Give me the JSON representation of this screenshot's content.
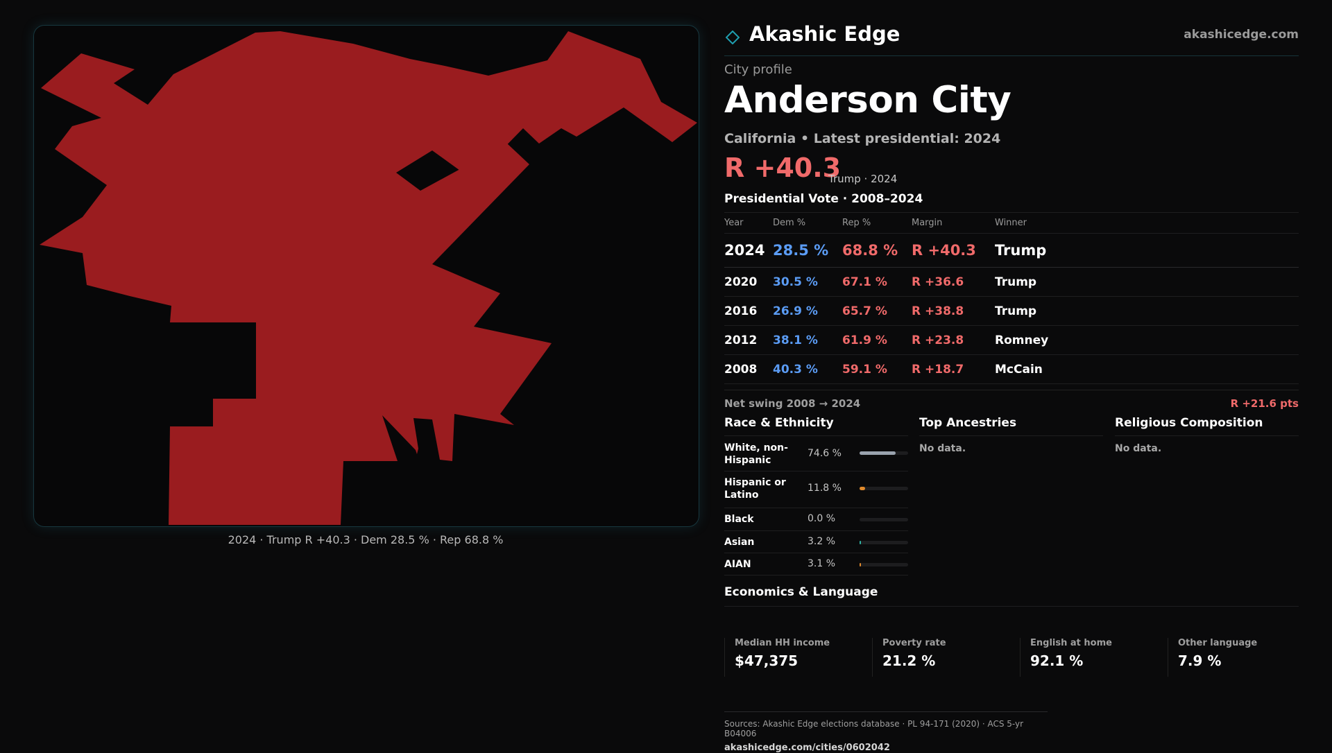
{
  "brand": {
    "name": "Akashic Edge",
    "url": "akashicedge.com"
  },
  "map": {
    "fill_color": "#9a1c1f",
    "caption": "2024 · Trump R +40.3 · Dem 28.5 % · Rep 68.8 %"
  },
  "profile": {
    "eyebrow": "City profile",
    "city": "Anderson City",
    "subline": "California • Latest presidential: 2024",
    "margin": "R +40.3",
    "margin_note": "Trump · 2024"
  },
  "votes": {
    "title": "Presidential Vote · 2008–2024",
    "headers": {
      "year": "Year",
      "dem": "Dem %",
      "rep": "Rep %",
      "margin": "Margin",
      "winner": "Winner"
    },
    "rows": [
      {
        "year": "2024",
        "dem": "28.5 %",
        "rep": "68.8 %",
        "margin": "R +40.3",
        "winner": "Trump"
      },
      {
        "year": "2020",
        "dem": "30.5 %",
        "rep": "67.1 %",
        "margin": "R +36.6",
        "winner": "Trump"
      },
      {
        "year": "2016",
        "dem": "26.9 %",
        "rep": "65.7 %",
        "margin": "R +38.8",
        "winner": "Trump"
      },
      {
        "year": "2012",
        "dem": "38.1 %",
        "rep": "61.9 %",
        "margin": "R +23.8",
        "winner": "Romney"
      },
      {
        "year": "2008",
        "dem": "40.3 %",
        "rep": "59.1 %",
        "margin": "R +18.7",
        "winner": "McCain"
      }
    ],
    "swing_label": "Net swing 2008 → 2024",
    "swing_value": "R +21.6 pts"
  },
  "race": {
    "title": "Race & Ethnicity",
    "rows": [
      {
        "label": "White, non-Hispanic",
        "value": "74.6 %",
        "pct": 74.6,
        "color": "#9aa3ae"
      },
      {
        "label": "Hispanic or Latino",
        "value": "11.8 %",
        "pct": 11.8,
        "color": "#e08a2c"
      },
      {
        "label": "Black",
        "value": "0.0 %",
        "pct": 0.0,
        "color": "#6a6a6a"
      },
      {
        "label": "Asian",
        "value": "3.2 %",
        "pct": 3.2,
        "color": "#2fb3a3"
      },
      {
        "label": "AIAN",
        "value": "3.1 %",
        "pct": 3.1,
        "color": "#e08a2c"
      }
    ]
  },
  "ancestry": {
    "title": "Top Ancestries",
    "empty": "No data."
  },
  "religion": {
    "title": "Religious Composition",
    "empty": "No data."
  },
  "economics": {
    "title": "Economics & Language",
    "cells": [
      {
        "label": "Median HH income",
        "value": "$47,375"
      },
      {
        "label": "Poverty rate",
        "value": "21.2 %"
      },
      {
        "label": "English at home",
        "value": "92.1 %"
      },
      {
        "label": "Other language",
        "value": "7.9 %"
      }
    ]
  },
  "footer": {
    "sources": "Sources: Akashic Edge elections database · PL 94-171 (2020) · ACS 5-yr B04006",
    "url": "akashicedge.com/cities/0602042"
  }
}
